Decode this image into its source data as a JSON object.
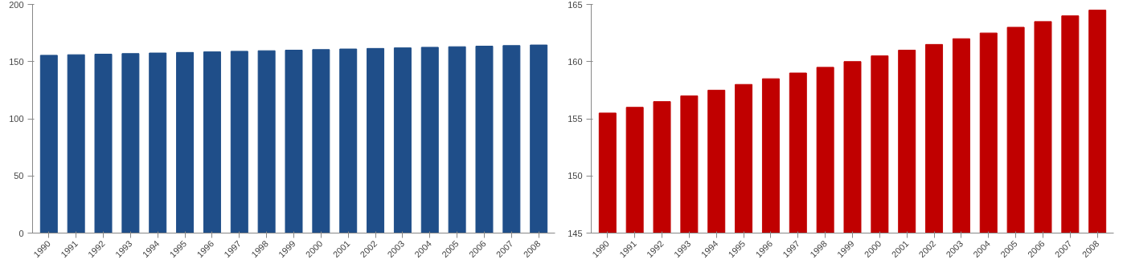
{
  "chart_data": [
    {
      "type": "bar",
      "categories": [
        "1990",
        "1991",
        "1992",
        "1993",
        "1994",
        "1995",
        "1996",
        "1997",
        "1998",
        "1999",
        "2000",
        "2001",
        "2002",
        "2003",
        "2004",
        "2005",
        "2006",
        "2007",
        "2008"
      ],
      "series": [
        {
          "color": "#1f4e89",
          "values": [
            155.5,
            156,
            156.5,
            157,
            157.5,
            158,
            158.5,
            159,
            159.5,
            160,
            160.5,
            161,
            161.5,
            162,
            162.5,
            163,
            163.5,
            164,
            164.5
          ]
        }
      ],
      "ylim": [
        0,
        200
      ],
      "yticks": [
        0,
        50,
        100,
        150,
        200
      ],
      "grid": false
    },
    {
      "type": "bar",
      "categories": [
        "1990",
        "1991",
        "1992",
        "1993",
        "1994",
        "1995",
        "1996",
        "1997",
        "1998",
        "1999",
        "2000",
        "2001",
        "2002",
        "2003",
        "2004",
        "2005",
        "2006",
        "2007",
        "2008"
      ],
      "series": [
        {
          "color": "#c00000",
          "values": [
            155.5,
            156,
            156.5,
            157,
            157.5,
            158,
            158.5,
            159,
            159.5,
            160,
            160.5,
            161,
            161.5,
            162,
            162.5,
            163,
            163.5,
            164,
            164.5
          ]
        }
      ],
      "ylim": [
        145,
        165
      ],
      "yticks": [
        145,
        150,
        155,
        160,
        165
      ],
      "grid": false
    }
  ]
}
